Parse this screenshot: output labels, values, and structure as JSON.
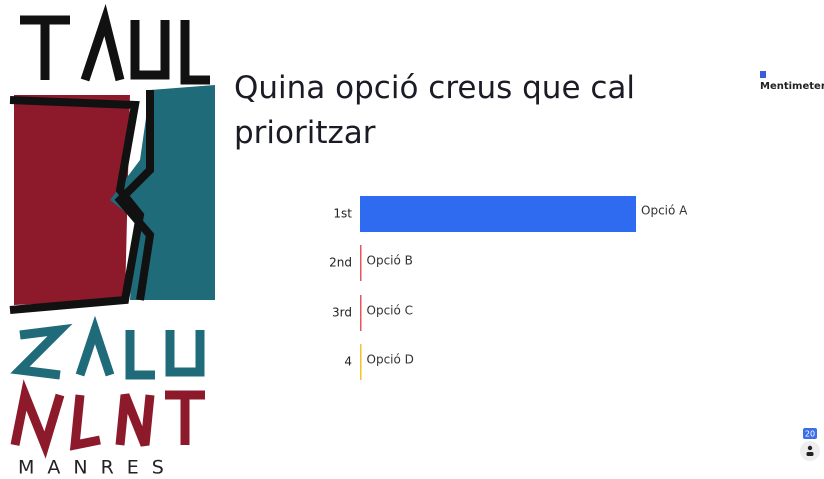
{
  "header": {
    "title": "Quina opció creus que cal prioritzar",
    "brand": "Mentimeter"
  },
  "logo": {
    "caption": "MANRES"
  },
  "chart_data": {
    "type": "ranking",
    "ranks": [
      "1st",
      "2nd",
      "3rd",
      "4"
    ],
    "categories": [
      "Opció A",
      "Opció B",
      "Opció C",
      "Opció D"
    ],
    "values": [
      100,
      0,
      0,
      0
    ],
    "colors": [
      "#2f6bf0",
      "#e8555f",
      "#e8555f",
      "#f2c230"
    ]
  },
  "participants": {
    "count": 20
  }
}
